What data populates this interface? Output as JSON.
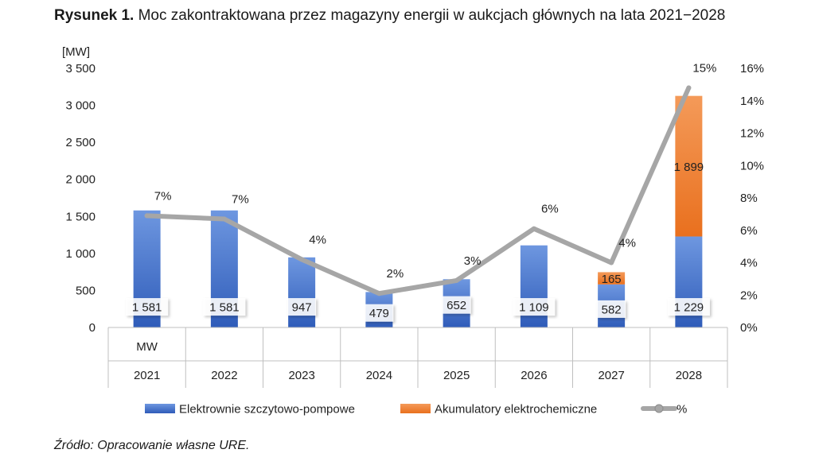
{
  "title": {
    "prefix": "Rysunek 1.",
    "text": "Moc zakontraktowana przez magazyny energii w aukcjach głównych na lata 2021−2028"
  },
  "source": "Źródło: Opracowanie własne URE.",
  "chart_data": {
    "type": "bar",
    "stacked": true,
    "categories": [
      "2021",
      "2022",
      "2023",
      "2024",
      "2025",
      "2026",
      "2027",
      "2028"
    ],
    "category_axis_extra_label": "MW",
    "y_unit_label": "[MW]",
    "ylim": [
      0,
      3500
    ],
    "y_ticks": [
      0,
      500,
      1000,
      1500,
      2000,
      2500,
      3000,
      3500
    ],
    "y_tick_labels": [
      "0",
      "500",
      "1 000",
      "1 500",
      "2 000",
      "2 500",
      "3 000",
      "3 500"
    ],
    "y2lim": [
      0,
      16
    ],
    "y2_ticks": [
      0,
      2,
      4,
      6,
      8,
      10,
      12,
      14,
      16
    ],
    "y2_tick_labels": [
      "0%",
      "2%",
      "4%",
      "6%",
      "8%",
      "10%",
      "12%",
      "14%",
      "16%"
    ],
    "series": [
      {
        "name": "Elektrownie szczytowo-pompowe",
        "kind": "bar",
        "color": "#4472C4",
        "values": [
          1581,
          1581,
          947,
          479,
          652,
          1109,
          582,
          1229
        ],
        "labels": [
          "1 581",
          "1 581",
          "947",
          "479",
          "652",
          "1 109",
          "582",
          "1 229"
        ]
      },
      {
        "name": "Akumulatory elektrochemiczne",
        "kind": "bar",
        "color": "#ED7D31",
        "values": [
          0,
          0,
          0,
          0,
          0,
          0,
          165,
          1899
        ],
        "labels": [
          "",
          "",
          "",
          "",
          "",
          "",
          "165",
          "1 899"
        ]
      },
      {
        "name": "%",
        "kind": "line",
        "axis": "secondary",
        "color": "#A6A6A6",
        "values": [
          6.9,
          6.7,
          4.2,
          2.1,
          2.9,
          6.1,
          4.0,
          14.8
        ],
        "labels": [
          "7%",
          "7%",
          "4%",
          "2%",
          "3%",
          "6%",
          "4%",
          "15%"
        ]
      }
    ],
    "legend_position": "bottom",
    "grid": false
  }
}
